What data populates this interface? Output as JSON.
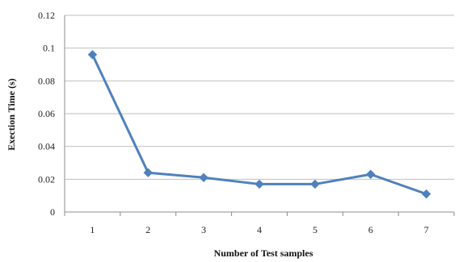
{
  "chart_data": {
    "type": "line",
    "title": "",
    "xlabel": "Number of Test samples",
    "ylabel": "Exection Time (s)",
    "categories": [
      "1",
      "2",
      "3",
      "4",
      "5",
      "6",
      "7"
    ],
    "series": [
      {
        "values": [
          0.096,
          0.024,
          0.021,
          0.017,
          0.017,
          0.023,
          0.011
        ]
      }
    ],
    "y_ticks": [
      "0",
      "0.02",
      "0.04",
      "0.06",
      "0.08",
      "0.1",
      "0.12"
    ],
    "ylim": [
      0,
      0.12
    ],
    "grid": "horizontal",
    "legend": "none",
    "colors": {
      "series": "#4f81bd",
      "grid": "#bfbfbf",
      "axis": "#8c8c8c"
    }
  }
}
